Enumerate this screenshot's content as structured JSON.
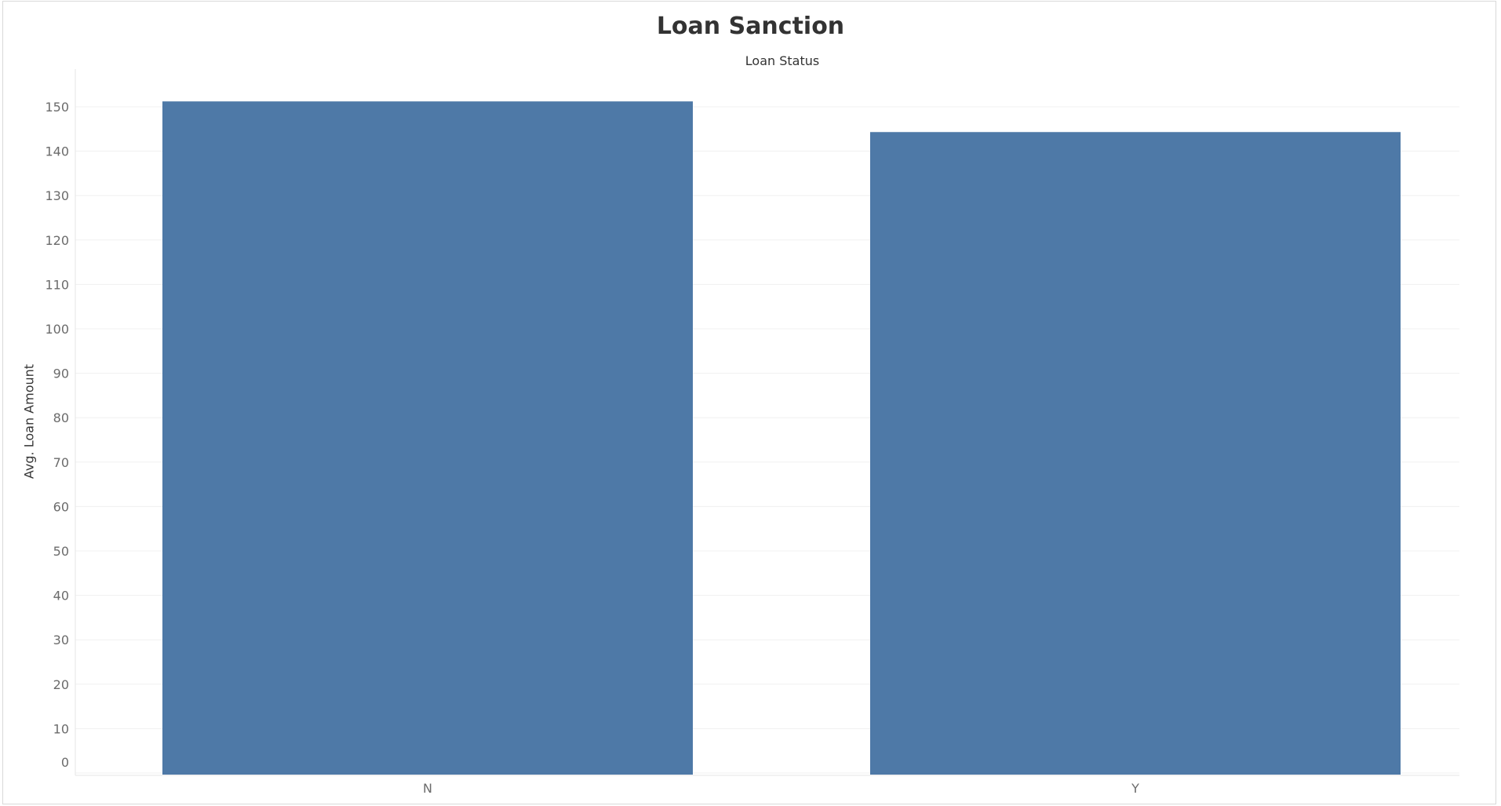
{
  "chart_data": {
    "type": "bar",
    "title": "Loan Sanction",
    "subtitle": "Loan Status",
    "xlabel": "",
    "ylabel": "Avg. Loan Amount",
    "categories": [
      "N",
      "Y"
    ],
    "values": [
      151.2,
      144.3
    ],
    "ylim": [
      0,
      150
    ],
    "yticks": [
      0,
      10,
      20,
      30,
      40,
      50,
      60,
      70,
      80,
      90,
      100,
      110,
      120,
      130,
      140,
      150
    ],
    "bar_color": "#4e79a7",
    "grid": true,
    "legend": "none"
  }
}
